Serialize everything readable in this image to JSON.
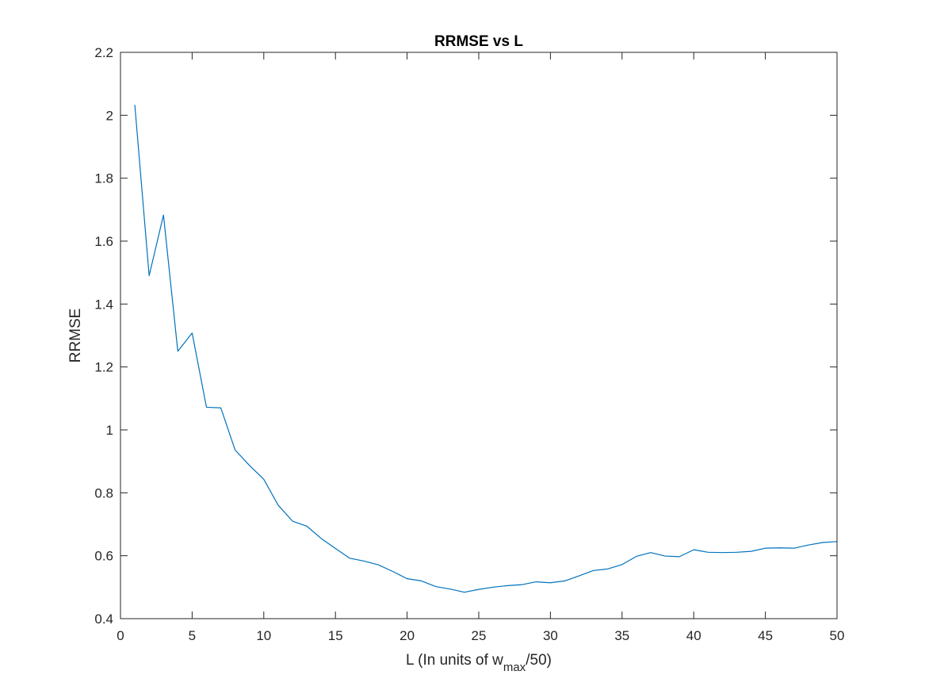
{
  "chart_data": {
    "type": "line",
    "title": "RRMSE vs L",
    "xlabel": {
      "prefix": "L (In units of w",
      "subscript": "max",
      "suffix": "/50)"
    },
    "ylabel": "RRMSE",
    "xlim": [
      0,
      50
    ],
    "ylim": [
      0.4,
      2.2
    ],
    "xticks": [
      0,
      5,
      10,
      15,
      20,
      25,
      30,
      35,
      40,
      45,
      50
    ],
    "xtick_labels": [
      "0",
      "5",
      "10",
      "15",
      "20",
      "25",
      "30",
      "35",
      "40",
      "45",
      "50"
    ],
    "yticks": [
      0.4,
      0.6,
      0.8,
      1.0,
      1.2,
      1.4,
      1.6,
      1.8,
      2.0,
      2.2
    ],
    "ytick_labels": [
      "0.4",
      "0.6",
      "0.8",
      "1",
      "1.2",
      "1.4",
      "1.6",
      "1.8",
      "2",
      "2.2"
    ],
    "grid": false,
    "box": true,
    "line_color": "#0072BD",
    "series": [
      {
        "x": [
          1,
          2,
          3,
          4,
          5,
          6,
          7,
          8,
          9,
          10,
          11,
          12,
          13,
          14,
          15,
          16,
          17,
          18,
          19,
          20,
          21,
          22,
          23,
          24,
          25,
          26,
          27,
          28,
          29,
          30,
          31,
          32,
          33,
          34,
          35,
          36,
          37,
          38,
          39,
          40,
          41,
          42,
          43,
          44,
          45,
          46,
          47,
          48,
          49,
          50
        ],
        "values": [
          2.033,
          1.49,
          1.683,
          1.25,
          1.308,
          1.072,
          1.07,
          0.936,
          0.887,
          0.843,
          0.761,
          0.71,
          0.694,
          0.655,
          0.623,
          0.592,
          0.583,
          0.571,
          0.55,
          0.527,
          0.52,
          0.502,
          0.494,
          0.484,
          0.493,
          0.5,
          0.505,
          0.508,
          0.517,
          0.514,
          0.52,
          0.536,
          0.553,
          0.558,
          0.572,
          0.598,
          0.61,
          0.599,
          0.597,
          0.619,
          0.611,
          0.61,
          0.611,
          0.614,
          0.624,
          0.625,
          0.624,
          0.634,
          0.642,
          0.645
        ]
      }
    ]
  }
}
